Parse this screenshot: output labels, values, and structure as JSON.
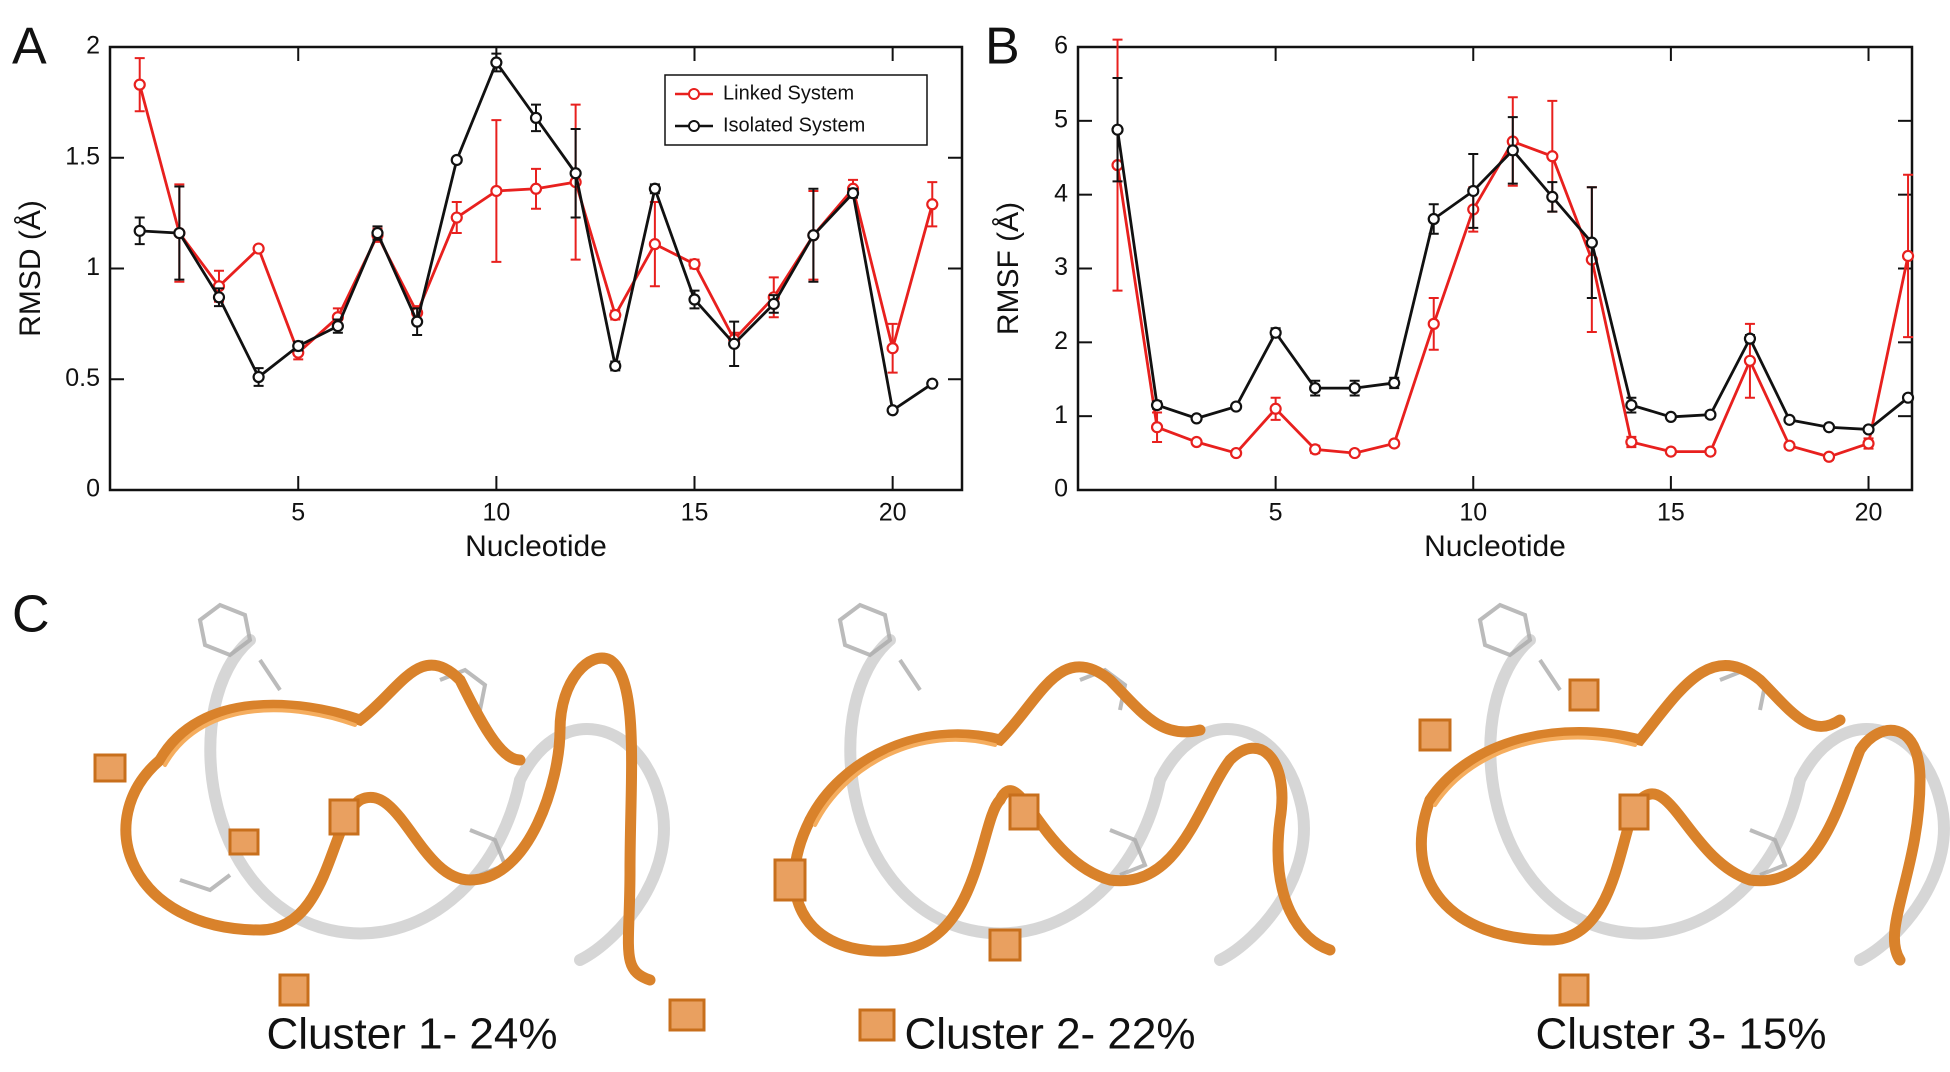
{
  "chart_data": [
    {
      "type": "line",
      "label": "A",
      "xlabel": "Nucleotide",
      "ylabel": "RMSD (Å)",
      "x": [
        1,
        2,
        3,
        4,
        5,
        6,
        7,
        8,
        9,
        10,
        11,
        12,
        13,
        14,
        15,
        16,
        17,
        18,
        19,
        20,
        21
      ],
      "xlim": [
        0.25,
        21.75
      ],
      "xticks": [
        5,
        10,
        15,
        20
      ],
      "ylim": [
        0,
        2
      ],
      "yticks": [
        0,
        0.5,
        1,
        1.5,
        2
      ],
      "legend": "upper right",
      "series": [
        {
          "name": "Linked System",
          "color": "#e8201e",
          "values": [
            1.83,
            1.16,
            0.92,
            1.09,
            0.62,
            0.78,
            1.15,
            0.8,
            1.23,
            1.35,
            1.36,
            1.39,
            0.79,
            1.11,
            1.02,
            0.68,
            0.87,
            1.15,
            1.36,
            0.64,
            1.29
          ],
          "errors": [
            0.12,
            0.22,
            0.07,
            0.01,
            0.03,
            0.04,
            0.03,
            0.03,
            0.07,
            0.32,
            0.09,
            0.35,
            0.02,
            0.19,
            0.02,
            0.03,
            0.09,
            0.2,
            0.04,
            0.11,
            0.1
          ]
        },
        {
          "name": "Isolated System",
          "color": "#111111",
          "values": [
            1.17,
            1.16,
            0.87,
            0.51,
            0.65,
            0.74,
            1.16,
            0.76,
            1.49,
            1.93,
            1.68,
            1.43,
            0.56,
            1.36,
            0.86,
            0.66,
            0.84,
            1.15,
            1.34,
            0.36,
            0.48
          ],
          "errors": [
            0.06,
            0.21,
            0.04,
            0.04,
            0.02,
            0.03,
            0.03,
            0.06,
            0.01,
            0.04,
            0.06,
            0.2,
            0.02,
            0.02,
            0.04,
            0.1,
            0.04,
            0.21,
            0.02,
            0.01,
            0.01
          ]
        }
      ]
    },
    {
      "type": "line",
      "label": "B",
      "xlabel": "Nucleotide",
      "ylabel": "RMSF  (Å)",
      "x": [
        1,
        2,
        3,
        4,
        5,
        6,
        7,
        8,
        9,
        10,
        11,
        12,
        13,
        14,
        15,
        16,
        17,
        18,
        19,
        20,
        21
      ],
      "xlim": [
        0,
        21.1
      ],
      "xticks": [
        5,
        10,
        15,
        20
      ],
      "ylim": [
        0,
        6
      ],
      "yticks": [
        0,
        1,
        2,
        3,
        4,
        5,
        6
      ],
      "series": [
        {
          "name": "Linked System",
          "color": "#e8201e",
          "values": [
            4.4,
            0.85,
            0.65,
            0.5,
            1.1,
            0.55,
            0.5,
            0.63,
            2.25,
            3.8,
            4.72,
            4.52,
            3.12,
            0.65,
            0.52,
            0.52,
            1.75,
            0.6,
            0.45,
            0.63,
            3.17
          ],
          "errors": [
            1.7,
            0.2,
            0.03,
            0.03,
            0.15,
            0.05,
            0.03,
            0.03,
            0.35,
            0.3,
            0.6,
            0.75,
            0.98,
            0.07,
            0.03,
            0.03,
            0.5,
            0.04,
            0.04,
            0.07,
            1.1
          ]
        },
        {
          "name": "Isolated System",
          "color": "#111111",
          "values": [
            4.88,
            1.15,
            0.97,
            1.13,
            2.13,
            1.38,
            1.38,
            1.45,
            3.67,
            4.05,
            4.6,
            3.97,
            3.35,
            1.15,
            0.99,
            1.02,
            2.05,
            0.95,
            0.85,
            0.82,
            1.25
          ],
          "errors": [
            0.7,
            0.05,
            0.03,
            0.03,
            0.06,
            0.1,
            0.1,
            0.07,
            0.2,
            0.5,
            0.45,
            0.2,
            0.75,
            0.1,
            0.03,
            0.04,
            0.05,
            0.03,
            0.03,
            0.03,
            0.03
          ]
        }
      ]
    }
  ],
  "structures": {
    "label": "C",
    "captions": [
      "Cluster 1- 24%",
      "Cluster 2- 22%",
      "Cluster 3- 15%"
    ]
  }
}
